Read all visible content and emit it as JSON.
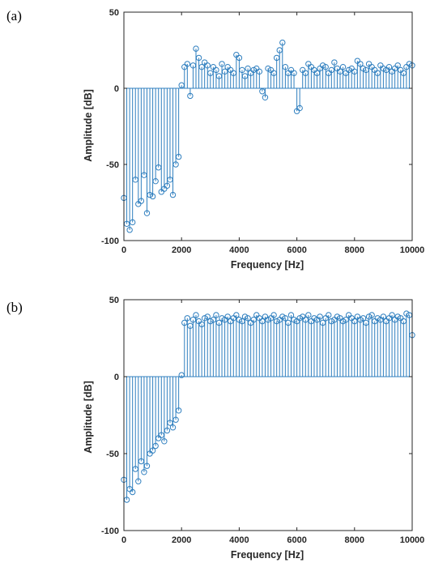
{
  "panels": [
    {
      "label": "(a)"
    },
    {
      "label": "(b)"
    }
  ],
  "colors": {
    "stem": "#2f7fbf",
    "axis": "#262626"
  },
  "chart_data": [
    {
      "type": "stem",
      "panel": "(a)",
      "xlabel": "Frequency [Hz]",
      "ylabel": "Amplitude [dB]",
      "xlim": [
        0,
        10000
      ],
      "ylim": [
        -100,
        50
      ],
      "xticks": [
        0,
        2000,
        4000,
        6000,
        8000,
        10000
      ],
      "yticks": [
        -100,
        -50,
        0,
        50
      ],
      "baseline": 0,
      "marker": "circle",
      "series": [
        {
          "x": [
            0,
            100,
            200,
            300,
            400,
            500,
            600,
            700,
            800,
            900,
            1000,
            1100,
            1200,
            1300,
            1400,
            1500,
            1600,
            1700,
            1800,
            1900,
            2000,
            2100,
            2200,
            2300,
            2400,
            2500,
            2600,
            2700,
            2800,
            2900,
            3000,
            3100,
            3200,
            3300,
            3400,
            3500,
            3600,
            3700,
            3800,
            3900,
            4000,
            4100,
            4200,
            4300,
            4400,
            4500,
            4600,
            4700,
            4800,
            4900,
            5000,
            5100,
            5200,
            5300,
            5400,
            5500,
            5600,
            5700,
            5800,
            5900,
            6000,
            6100,
            6200,
            6300,
            6400,
            6500,
            6600,
            6700,
            6800,
            6900,
            7000,
            7100,
            7200,
            7300,
            7400,
            7500,
            7600,
            7700,
            7800,
            7900,
            8000,
            8100,
            8200,
            8300,
            8400,
            8500,
            8600,
            8700,
            8800,
            8900,
            9000,
            9100,
            9200,
            9300,
            9400,
            9500,
            9600,
            9700,
            9800,
            9900,
            10000
          ],
          "values": [
            -72,
            -89,
            -93,
            -88,
            -60,
            -76,
            -74,
            -57,
            -82,
            -70,
            -71,
            -61,
            -52,
            -68,
            -66,
            -64,
            -60,
            -70,
            -50,
            -45,
            2,
            14,
            16,
            -5,
            15,
            26,
            20,
            14,
            17,
            15,
            10,
            14,
            12,
            8,
            16,
            11,
            14,
            12,
            10,
            22,
            20,
            12,
            8,
            13,
            10,
            12,
            13,
            11,
            -2,
            -6,
            13,
            12,
            10,
            20,
            25,
            30,
            14,
            10,
            12,
            10,
            -15,
            -13,
            12,
            10,
            16,
            14,
            12,
            10,
            13,
            15,
            14,
            10,
            12,
            17,
            13,
            11,
            14,
            10,
            12,
            13,
            11,
            18,
            16,
            13,
            12,
            16,
            14,
            12,
            10,
            15,
            13,
            12,
            14,
            11,
            13,
            15,
            12,
            10,
            14,
            16,
            15
          ]
        }
      ]
    },
    {
      "type": "stem",
      "panel": "(b)",
      "xlabel": "Frequency [Hz]",
      "ylabel": "Amplitude [dB]",
      "xlim": [
        0,
        10000
      ],
      "ylim": [
        -100,
        50
      ],
      "xticks": [
        0,
        2000,
        4000,
        6000,
        8000,
        10000
      ],
      "yticks": [
        -100,
        -50,
        0,
        50
      ],
      "baseline": 0,
      "marker": "circle",
      "series": [
        {
          "x": [
            0,
            100,
            200,
            300,
            400,
            500,
            600,
            700,
            800,
            900,
            1000,
            1100,
            1200,
            1300,
            1400,
            1500,
            1600,
            1700,
            1800,
            1900,
            2000,
            2100,
            2200,
            2300,
            2400,
            2500,
            2600,
            2700,
            2800,
            2900,
            3000,
            3100,
            3200,
            3300,
            3400,
            3500,
            3600,
            3700,
            3800,
            3900,
            4000,
            4100,
            4200,
            4300,
            4400,
            4500,
            4600,
            4700,
            4800,
            4900,
            5000,
            5100,
            5200,
            5300,
            5400,
            5500,
            5600,
            5700,
            5800,
            5900,
            6000,
            6100,
            6200,
            6300,
            6400,
            6500,
            6600,
            6700,
            6800,
            6900,
            7000,
            7100,
            7200,
            7300,
            7400,
            7500,
            7600,
            7700,
            7800,
            7900,
            8000,
            8100,
            8200,
            8300,
            8400,
            8500,
            8600,
            8700,
            8800,
            8900,
            9000,
            9100,
            9200,
            9300,
            9400,
            9500,
            9600,
            9700,
            9800,
            9900,
            10000
          ],
          "values": [
            -67,
            -80,
            -73,
            -75,
            -60,
            -68,
            -55,
            -62,
            -58,
            -50,
            -48,
            -45,
            -40,
            -38,
            -42,
            -35,
            -30,
            -33,
            -28,
            -22,
            1,
            35,
            38,
            33,
            37,
            40,
            36,
            34,
            38,
            39,
            36,
            37,
            40,
            35,
            38,
            37,
            39,
            36,
            38,
            40,
            37,
            36,
            39,
            38,
            35,
            37,
            40,
            38,
            36,
            39,
            37,
            38,
            40,
            36,
            37,
            39,
            38,
            35,
            40,
            37,
            36,
            38,
            39,
            37,
            40,
            36,
            38,
            37,
            39,
            35,
            38,
            40,
            36,
            37,
            39,
            38,
            36,
            37,
            40,
            38,
            36,
            39,
            37,
            38,
            35,
            39,
            40,
            36,
            38,
            37,
            39,
            36,
            38,
            40,
            37,
            39,
            38,
            36,
            41,
            40,
            27
          ]
        }
      ]
    }
  ]
}
